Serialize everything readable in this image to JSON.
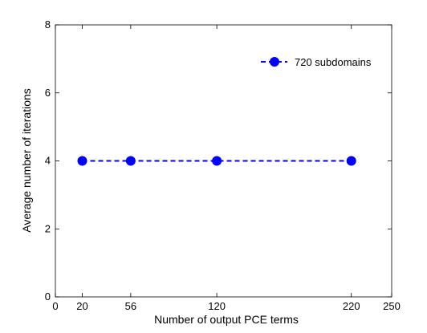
{
  "chart_data": {
    "type": "line",
    "xlabel": "Number of output PCE terms",
    "ylabel": "Average number of iterations",
    "xlim": [
      0,
      250
    ],
    "ylim": [
      0,
      8
    ],
    "xticks": [
      "0",
      "20",
      "56",
      "120",
      "220",
      "250"
    ],
    "yticks": [
      "0",
      "2",
      "4",
      "6",
      "8"
    ],
    "grid": false,
    "legend_position": "top-right",
    "series": [
      {
        "name": "720 subdomains",
        "x": [
          20,
          56,
          120,
          220
        ],
        "y": [
          4,
          4,
          4,
          4
        ],
        "color": "#0000ff",
        "line_style": "dashed",
        "marker": "circle"
      }
    ]
  }
}
